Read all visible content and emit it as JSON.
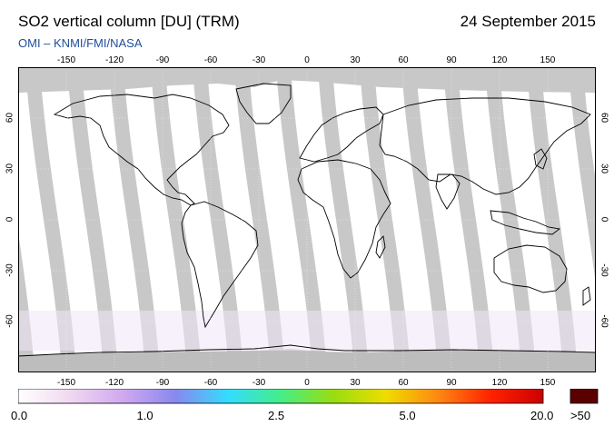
{
  "header": {
    "title": "SO2 vertical column [DU] (TRM)",
    "date": "24 September 2015",
    "credit": "OMI  –  KNMI/FMI/NASA"
  },
  "map": {
    "projection": "equirectangular",
    "lon_range": [
      -180,
      180
    ],
    "lat_range": [
      -90,
      90
    ],
    "lon_ticks": [
      "-150",
      "-120",
      "-90",
      "-60",
      "-30",
      "0",
      "30",
      "60",
      "90",
      "120",
      "150"
    ],
    "lat_ticks": [
      "60",
      "30",
      "0",
      "-30",
      "-60"
    ],
    "colors": {
      "no_data": "#c8c8c8",
      "background": "#ffffff",
      "coastline": "#000000",
      "land_dark_swath": "#a0a0a0"
    }
  },
  "colorbar": {
    "labels": [
      "0.0",
      "1.0",
      "2.5",
      "5.0",
      "20.0",
      ">50"
    ],
    "gradient_colors": [
      "#ffffff",
      "#f0d8f0",
      "#d0a8f0",
      "#8888ee",
      "#33ddff",
      "#44ee88",
      "#99dd11",
      "#eedd00",
      "#ff8811",
      "#ff2200",
      "#cc0000"
    ],
    "overflow_color": "#5a0000"
  }
}
